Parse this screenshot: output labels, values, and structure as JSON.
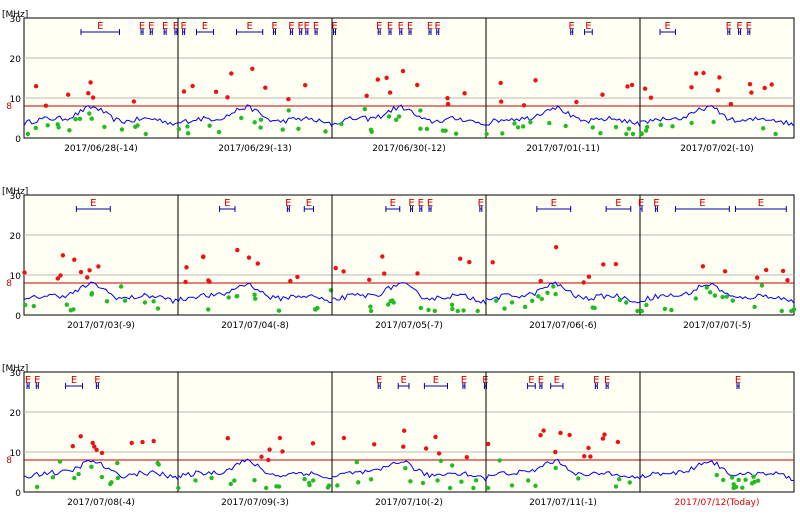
{
  "colors": {
    "panel_bg": "#fffff4",
    "grid": "#bbbbbb",
    "divider": "#000000",
    "threshold": "#c00000",
    "median": "#0000ff",
    "above": "#ee1111",
    "below": "#22bb22",
    "es": "#0000aa",
    "es_label": "#cc0000",
    "today": "#dd0000"
  },
  "chart_data": [
    {
      "type": "scatter",
      "unit_label": "[MHz]",
      "ylim": [
        0,
        30
      ],
      "yticks": [
        0,
        10,
        20,
        30
      ],
      "threshold": 8,
      "threshold_label": "8",
      "es_label": "E",
      "days": [
        {
          "label": "2017/06/28(-14)",
          "es": [
            [
              0.37,
              0.62
            ],
            [
              0.76,
              0.77
            ],
            [
              0.82,
              0.83
            ],
            [
              0.91,
              0.92
            ],
            [
              0.98,
              0.99
            ]
          ]
        },
        {
          "label": "2017/06/29(-13)",
          "es": [
            [
              0.03,
              0.04
            ],
            [
              0.12,
              0.23
            ],
            [
              0.38,
              0.55
            ],
            [
              0.62,
              0.63
            ],
            [
              0.73,
              0.74
            ],
            [
              0.79,
              0.8
            ],
            [
              0.83,
              0.84
            ],
            [
              0.89,
              0.9
            ]
          ]
        },
        {
          "label": "2017/06/30(-12)",
          "es": [
            [
              0.01,
              0.02
            ],
            [
              0.3,
              0.31
            ],
            [
              0.37,
              0.38
            ],
            [
              0.44,
              0.45
            ],
            [
              0.5,
              0.51
            ],
            [
              0.63,
              0.64
            ],
            [
              0.68,
              0.69
            ]
          ]
        },
        {
          "label": "2017/07/01(-11)",
          "es": [
            [
              0.55,
              0.56
            ],
            [
              0.64,
              0.69
            ]
          ]
        },
        {
          "label": "2017/07/02(-10)",
          "es": [
            [
              0.13,
              0.23
            ],
            [
              0.57,
              0.58
            ],
            [
              0.64,
              0.65
            ],
            [
              0.7,
              0.71
            ]
          ]
        }
      ]
    },
    {
      "type": "scatter",
      "unit_label": "[MHz]",
      "ylim": [
        0,
        30
      ],
      "yticks": [
        0,
        10,
        20,
        30
      ],
      "threshold": 8,
      "threshold_label": "8",
      "es_label": "E",
      "days": [
        {
          "label": "2017/07/03(-9)",
          "es": [
            [
              0.34,
              0.56
            ]
          ]
        },
        {
          "label": "2017/07/04(-8)",
          "es": [
            [
              0.27,
              0.37
            ],
            [
              0.71,
              0.72
            ],
            [
              0.82,
              0.88
            ]
          ]
        },
        {
          "label": "2017/07/05(-7)",
          "es": [
            [
              0.35,
              0.44
            ],
            [
              0.51,
              0.52
            ],
            [
              0.57,
              0.58
            ],
            [
              0.63,
              0.64
            ],
            [
              0.96,
              0.97
            ]
          ]
        },
        {
          "label": "2017/07/06(-6)",
          "es": [
            [
              0.33,
              0.55
            ],
            [
              0.78,
              0.94
            ]
          ]
        },
        {
          "label": "2017/07/07(-5)",
          "es": [
            [
              0.0,
              0.01
            ],
            [
              0.1,
              0.11
            ],
            [
              0.23,
              0.58
            ],
            [
              0.62,
              0.95
            ]
          ]
        }
      ]
    },
    {
      "type": "scatter",
      "unit_label": "[MHz]",
      "ylim": [
        0,
        30
      ],
      "yticks": [
        0,
        10,
        20,
        30
      ],
      "threshold": 8,
      "threshold_label": "8",
      "es_label": "E",
      "days": [
        {
          "label": "2017/07/08(-4)",
          "es": [
            [
              0.02,
              0.03
            ],
            [
              0.08,
              0.09
            ],
            [
              0.27,
              0.38
            ],
            [
              0.47,
              0.48
            ]
          ]
        },
        {
          "label": "2017/07/09(-3)",
          "es": []
        },
        {
          "label": "2017/07/10(-2)",
          "es": [
            [
              0.3,
              0.31
            ],
            [
              0.43,
              0.5
            ],
            [
              0.6,
              0.75
            ],
            [
              0.85,
              0.86
            ],
            [
              0.99,
              1.0
            ]
          ]
        },
        {
          "label": "2017/07/11(-1)",
          "es": [
            [
              0.27,
              0.32
            ],
            [
              0.35,
              0.36
            ],
            [
              0.42,
              0.5
            ],
            [
              0.71,
              0.72
            ],
            [
              0.78,
              0.79
            ]
          ]
        },
        {
          "label": "2017/07/12(Today)",
          "es": [
            [
              0.63,
              0.64
            ]
          ],
          "today": true
        }
      ]
    }
  ]
}
